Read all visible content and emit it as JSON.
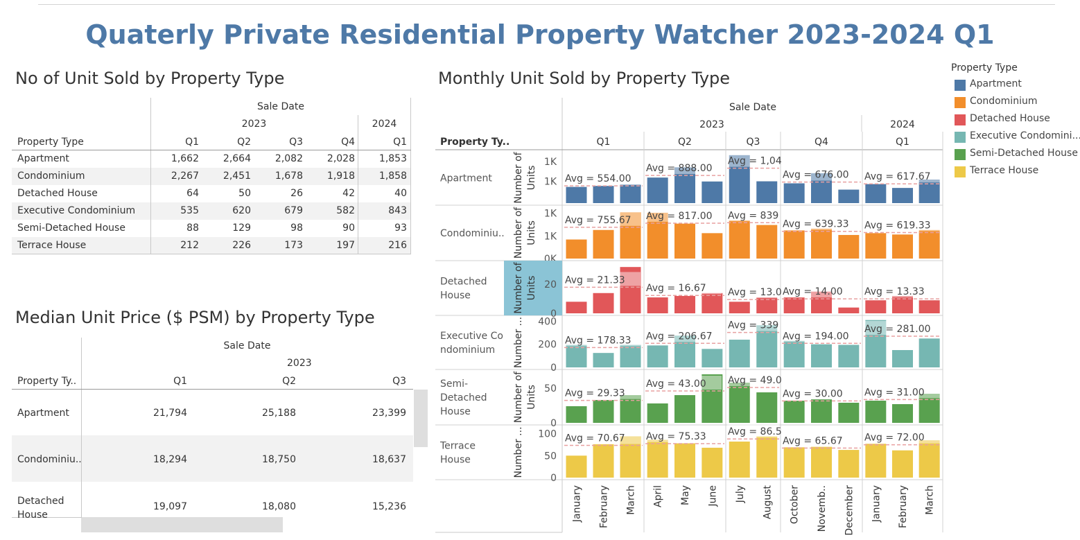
{
  "title": "Quaterly Private Residential Property Watcher 2023-2024 Q1",
  "table1": {
    "title": "No of Unit Sold by Property Type",
    "header_group": "Sale Date",
    "years": [
      "2023",
      "2024"
    ],
    "row_header": "Property Type",
    "quarters": [
      "Q1",
      "Q2",
      "Q3",
      "Q4",
      "Q1"
    ],
    "rows": [
      {
        "type": "Apartment",
        "values": [
          "1,662",
          "2,664",
          "2,082",
          "2,028",
          "1,853"
        ]
      },
      {
        "type": "Condominium",
        "values": [
          "2,267",
          "2,451",
          "1,678",
          "1,918",
          "1,858"
        ]
      },
      {
        "type": "Detached House",
        "values": [
          "64",
          "50",
          "26",
          "42",
          "40"
        ]
      },
      {
        "type": "Executive Condominium",
        "values": [
          "535",
          "620",
          "679",
          "582",
          "843"
        ]
      },
      {
        "type": "Semi-Detached House",
        "values": [
          "88",
          "129",
          "98",
          "90",
          "93"
        ]
      },
      {
        "type": "Terrace House",
        "values": [
          "212",
          "226",
          "173",
          "197",
          "216"
        ]
      }
    ]
  },
  "table2": {
    "title": "Median Unit Price ($ PSM) by Property Type",
    "header_group": "Sale Date",
    "year": "2023",
    "row_header": "Property Ty..",
    "quarters": [
      "Q1",
      "Q2",
      "Q3"
    ],
    "rows": [
      {
        "type": "Apartment",
        "values": [
          "21,794",
          "25,188",
          "23,399"
        ]
      },
      {
        "type": "Condominiu..",
        "values": [
          "18,294",
          "18,750",
          "18,637"
        ]
      },
      {
        "type": "Detached House",
        "values": [
          "19,097",
          "18,080",
          "15,236"
        ]
      }
    ]
  },
  "legend": {
    "title": "Property Type",
    "items": [
      {
        "label": "Apartment",
        "color": "#4e79a7"
      },
      {
        "label": "Condominium",
        "color": "#f28e2b"
      },
      {
        "label": "Detached House",
        "color": "#e15759"
      },
      {
        "label": "Executive Condomini...",
        "color": "#76b7b2"
      },
      {
        "label": "Semi-Detached House",
        "color": "#59a14f"
      },
      {
        "label": "Terrace House",
        "color": "#edc948"
      }
    ]
  },
  "chart_data": {
    "type": "bar",
    "title": "Monthly Unit Sold by Property Type",
    "header_group": "Sale Date",
    "years": [
      "2023",
      "2024"
    ],
    "quarters": [
      "Q1",
      "Q2",
      "Q3",
      "Q4",
      "Q1"
    ],
    "row_header": "Property Ty..",
    "categories": [
      "January",
      "February",
      "March",
      "April",
      "May",
      "June",
      "July",
      "August",
      "October",
      "Novemb..",
      "December",
      "January",
      "February",
      "March"
    ],
    "quarter_sizes": [
      3,
      3,
      2,
      3,
      3
    ],
    "reference_line": "average per quarter",
    "series": [
      {
        "label": "Apartment",
        "color": "#4e79a7",
        "ylabel": "Number of Units",
        "ticks": [
          {
            "v": 1330,
            "label": "1K"
          },
          {
            "v": 700,
            "label": "1K"
          }
        ],
        "ymax": 1580,
        "values": [
          520,
          552,
          590,
          820,
          1150,
          694,
          1540,
          700,
          635,
          960,
          433,
          610,
          487,
          756
        ],
        "avgs": [
          "Avg = 554.00",
          "Avg = 888.00",
          "Avg = 1,04",
          "Avg = 676.00",
          "Avg = 617.67"
        ]
      },
      {
        "label": "Condominiu..",
        "color": "#f28e2b",
        "ylabel": "Number of Units",
        "ticks": [
          {
            "v": 1000,
            "label": "1K"
          },
          {
            "v": 500,
            "label": "1K"
          },
          {
            "v": 0,
            "label": "0K"
          }
        ],
        "ymax": 1100,
        "values": [
          420,
          630,
          1020,
          1010,
          770,
          560,
          840,
          740,
          620,
          660,
          520,
          560,
          530,
          630
        ],
        "avgs": [
          "Avg = 755.67",
          "Avg = 817.00",
          "Avg = 839",
          "Avg = 639.33",
          "Avg = 619.33"
        ]
      },
      {
        "label": "Detached House",
        "color": "#e15759",
        "ylabel": "Number of Units",
        "highlight": true,
        "ticks": [
          {
            "v": 20,
            "label": "20"
          },
          {
            "v": 0,
            "label": "0"
          }
        ],
        "ymax": 34,
        "values": [
          8,
          14,
          32,
          11,
          12,
          14,
          8,
          11,
          11,
          15,
          4,
          9,
          12,
          9
        ],
        "avgs": [
          "Avg = 21.33",
          "Avg = 16.67",
          "Avg = 13.0",
          "Avg = 14.00",
          "Avg = 13.33"
        ]
      },
      {
        "label": "Executive Condominium",
        "color": "#76b7b2",
        "ylabel": "Number ...",
        "ticks": [
          {
            "v": 400,
            "label": "400"
          },
          {
            "v": 200,
            "label": "200"
          },
          {
            "v": 0,
            "label": "0"
          }
        ],
        "ymax": 420,
        "values": [
          195,
          125,
          195,
          190,
          275,
          160,
          240,
          365,
          230,
          200,
          195,
          410,
          150,
          250
        ],
        "avgs": [
          "Avg = 178.33",
          "Avg = 206.67",
          "Avg = 339",
          "Avg = 194.00",
          "Avg = 281.00"
        ]
      },
      {
        "label": "Semi-Detached House",
        "color": "#59a14f",
        "ylabel": "Number of Units",
        "ticks": [
          {
            "v": 50,
            "label": "50"
          },
          {
            "v": 0,
            "label": "0"
          }
        ],
        "ymax": 72,
        "values": [
          24,
          33,
          40,
          28,
          40,
          70,
          58,
          44,
          32,
          34,
          29,
          32,
          27,
          42
        ],
        "avgs": [
          "Avg = 29.33",
          "Avg = 43.00",
          "Avg = 49.0",
          "Avg = 30.00",
          "Avg = 31.00"
        ]
      },
      {
        "label": "Terrace House",
        "color": "#edc948",
        "ylabel": "Number ...",
        "ticks": [
          {
            "v": 100,
            "label": "100"
          },
          {
            "v": 50,
            "label": "50"
          },
          {
            "v": 0,
            "label": "0"
          }
        ],
        "ymax": 112,
        "values": [
          50,
          76,
          94,
          86,
          78,
          68,
          82,
          94,
          69,
          70,
          63,
          77,
          62,
          85
        ],
        "avgs": [
          "Avg = 70.67",
          "Avg = 75.33",
          "Avg = 86.5",
          "Avg = 65.67",
          "Avg = 72.00"
        ]
      }
    ]
  }
}
